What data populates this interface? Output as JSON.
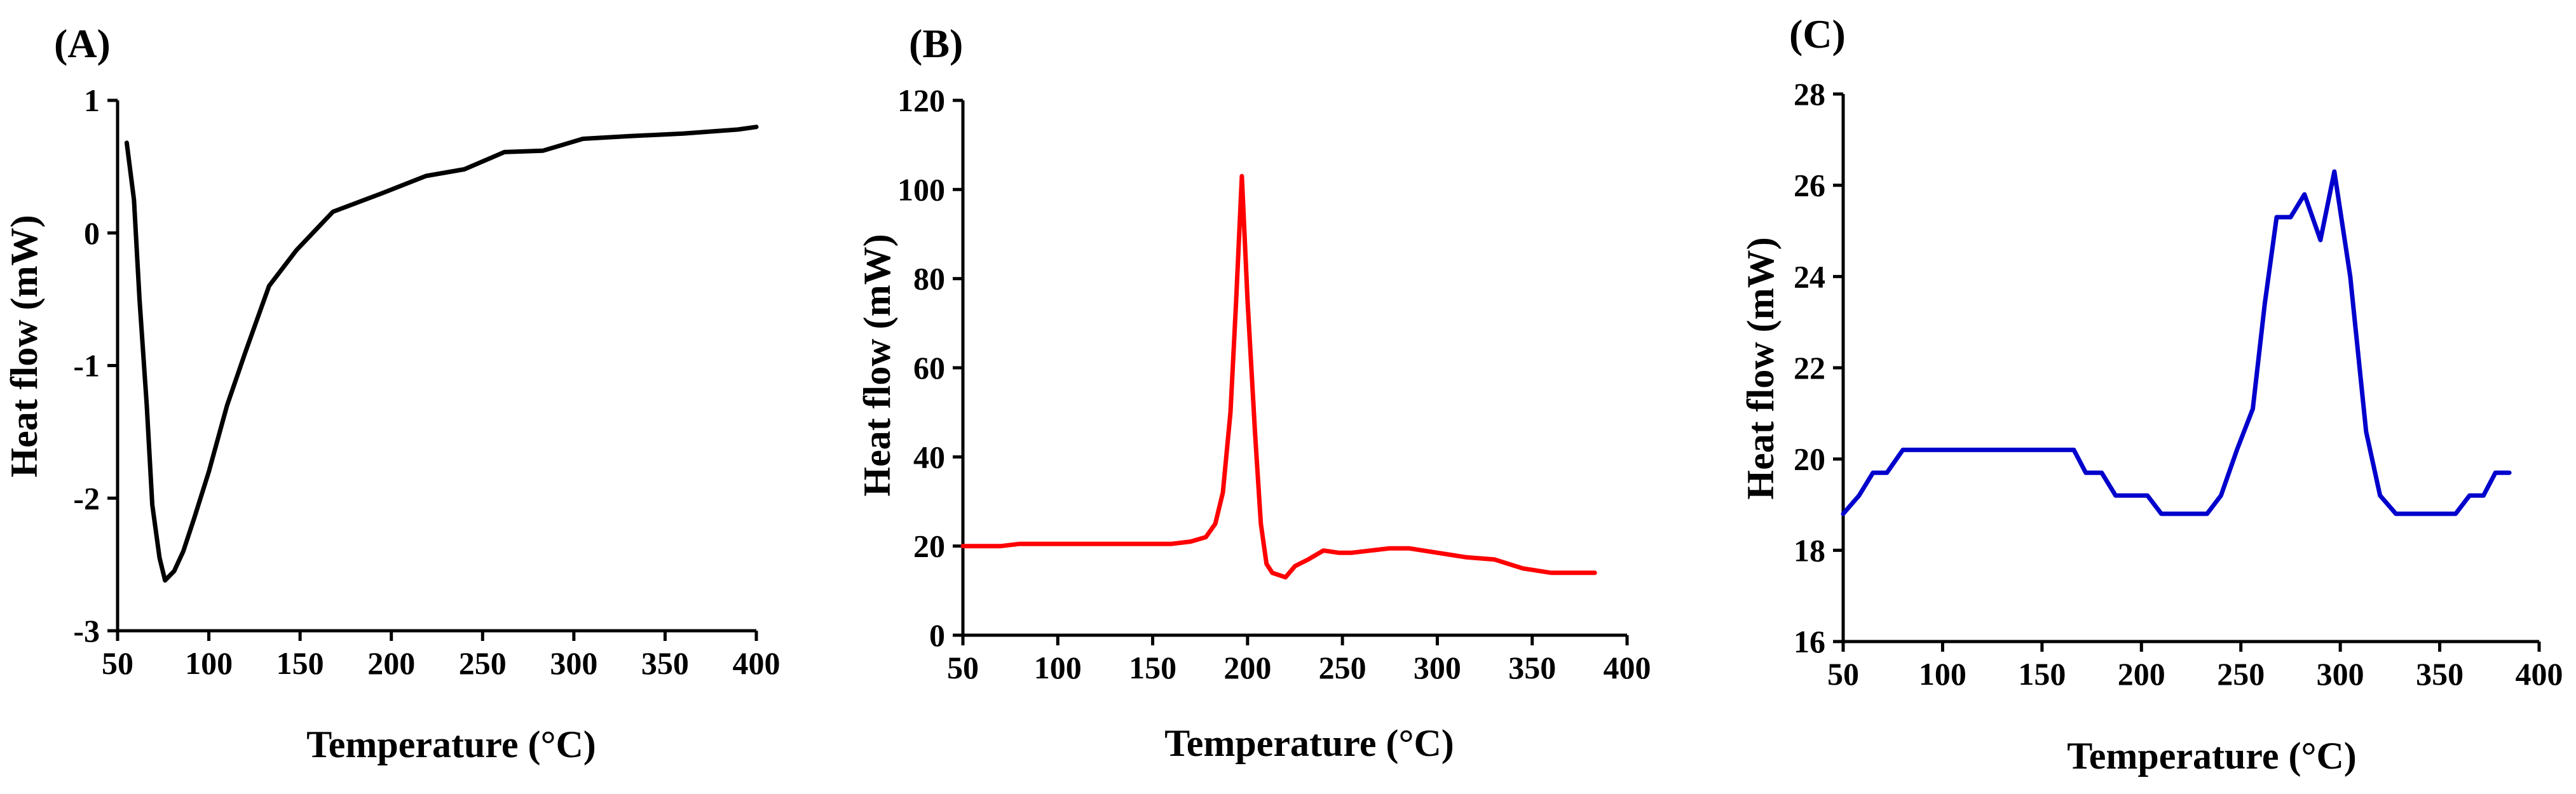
{
  "chart_data": [
    {
      "type": "line",
      "panel_label": "(A)",
      "xlabel": "Temperature (°C)",
      "ylabel": "Heat flow (mW)",
      "xlim": [
        50,
        400
      ],
      "ylim": [
        -3,
        1
      ],
      "xticks": [
        50,
        100,
        150,
        200,
        250,
        300,
        350,
        400
      ],
      "yticks": [
        -3,
        -2,
        -1,
        0,
        1
      ],
      "grid": false,
      "series": [
        {
          "color": "#000000",
          "x": [
            55,
            59,
            62,
            66,
            69,
            73,
            76,
            81,
            86,
            92,
            100,
            110,
            120,
            133,
            148,
            168,
            195,
            219,
            240,
            262,
            283,
            305,
            330,
            360,
            390,
            400
          ],
          "y": [
            0.68,
            0.25,
            -0.5,
            -1.3,
            -2.05,
            -2.45,
            -2.62,
            -2.55,
            -2.4,
            -2.15,
            -1.8,
            -1.3,
            -0.9,
            -0.4,
            -0.13,
            0.16,
            0.3,
            0.43,
            0.48,
            0.61,
            0.62,
            0.71,
            0.73,
            0.75,
            0.78,
            0.8
          ]
        }
      ]
    },
    {
      "type": "line",
      "panel_label": "(B)",
      "xlabel": "Temperature (°C)",
      "ylabel": "Heat flow (mW)",
      "xlim": [
        50,
        400
      ],
      "ylim": [
        0,
        120
      ],
      "xticks": [
        50,
        100,
        150,
        200,
        250,
        300,
        350,
        400
      ],
      "yticks": [
        0,
        20,
        40,
        60,
        80,
        100,
        120
      ],
      "grid": false,
      "series": [
        {
          "color": "#ff0000",
          "x": [
            50,
            70,
            80,
            100,
            120,
            140,
            160,
            170,
            178,
            183,
            187,
            191,
            194,
            197,
            200,
            204,
            207,
            210,
            213,
            220,
            225,
            232,
            240,
            248,
            255,
            265,
            275,
            285,
            300,
            315,
            330,
            345,
            360,
            375,
            383
          ],
          "y": [
            20,
            20,
            20.5,
            20.5,
            20.5,
            20.5,
            20.5,
            21,
            22,
            25,
            32,
            50,
            75,
            103,
            75,
            45,
            25,
            16,
            14,
            13,
            15.5,
            17,
            19,
            18.5,
            18.5,
            19,
            19.5,
            19.5,
            18.5,
            17.5,
            17,
            15,
            14,
            14,
            14
          ]
        }
      ]
    },
    {
      "type": "line",
      "panel_label": "(C)",
      "xlabel": "Temperature (°C)",
      "ylabel": "Heat flow (mW)",
      "xlim": [
        50,
        400
      ],
      "ylim": [
        16,
        28
      ],
      "xticks": [
        50,
        100,
        150,
        200,
        250,
        300,
        350,
        400
      ],
      "yticks": [
        16,
        18,
        20,
        22,
        24,
        26,
        28
      ],
      "grid": false,
      "series": [
        {
          "color": "#0000cc",
          "x": [
            50,
            58,
            65,
            72,
            80,
            90,
            100,
            120,
            140,
            160,
            166,
            172,
            180,
            187,
            195,
            203,
            210,
            220,
            233,
            240,
            248,
            256,
            262,
            268,
            275,
            282,
            290,
            297,
            305,
            313,
            320,
            328,
            340,
            352,
            358,
            365,
            372,
            378,
            385
          ],
          "y": [
            18.8,
            19.2,
            19.7,
            19.7,
            20.2,
            20.2,
            20.2,
            20.2,
            20.2,
            20.2,
            20.2,
            19.7,
            19.7,
            19.2,
            19.2,
            19.2,
            18.8,
            18.8,
            18.8,
            19.2,
            20.2,
            21.1,
            23.4,
            25.3,
            25.3,
            25.8,
            24.8,
            26.3,
            24.0,
            20.6,
            19.2,
            18.8,
            18.8,
            18.8,
            18.8,
            19.2,
            19.2,
            19.7,
            19.7
          ]
        }
      ]
    }
  ]
}
